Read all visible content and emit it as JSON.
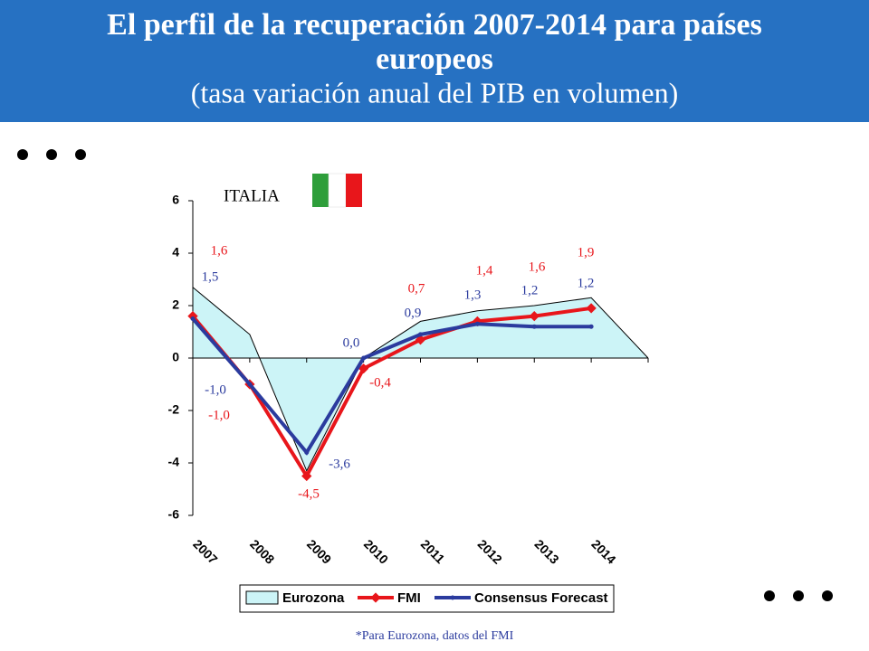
{
  "chart_data": {
    "type": "line",
    "title": "El perfil de la recuperación 2007-2014 para países europeos",
    "subtitle": "(tasa variación anual del PIB en volumen)",
    "annotation": "ITALIA",
    "footnote": "*Para Eurozona, datos del FMI",
    "categories": [
      "2007",
      "2008",
      "2009",
      "2010",
      "2011",
      "2012",
      "2013",
      "2014",
      null
    ],
    "series": [
      {
        "name": "Eurozona",
        "color": "#ccf4f7",
        "area": true,
        "values": [
          2.7,
          0.9,
          -4.3,
          0.0,
          1.4,
          1.8,
          2.0,
          2.3,
          0
        ]
      },
      {
        "name": "FMI",
        "color": "#e8161b",
        "values": [
          1.6,
          -1.0,
          -4.5,
          -0.4,
          0.7,
          1.4,
          1.6,
          1.9,
          null
        ],
        "value_labels": [
          "1,6",
          "-1,0",
          "-4,5",
          "-0,4",
          "0,7",
          "1,4",
          "1,6",
          "1,9",
          null
        ]
      },
      {
        "name": "Consensus Forecast",
        "color": "#2b3b9e",
        "values": [
          1.5,
          -1.0,
          -3.6,
          0.0,
          0.9,
          1.3,
          1.2,
          1.2,
          null
        ],
        "value_labels": [
          "1,5",
          "-1,0",
          "-3,6",
          "0,0",
          "0,9",
          "1,3",
          "1,2",
          "1,2",
          null
        ]
      }
    ],
    "ylim": [
      -6,
      6
    ],
    "yticks": [
      -6,
      -4,
      -2,
      0,
      2,
      4,
      6
    ],
    "legend": "bottom"
  }
}
